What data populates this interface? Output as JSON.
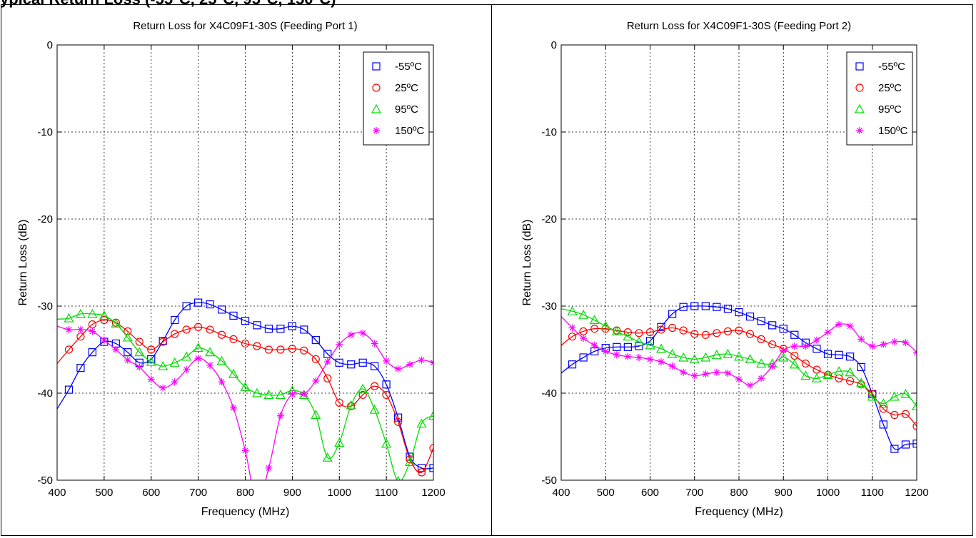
{
  "header_text": "ypical Return Loss (-55°C, 25°C, 95°C, 150°C)",
  "colors": {
    "-55C": "#0000ff",
    "25C": "#ff0000",
    "95C": "#00dd00",
    "150C": "#ff00ff",
    "grid": "#000000",
    "frame": "#000000"
  },
  "chart_data": [
    {
      "type": "line",
      "title": "Return Loss for X4C09F1-30S (Feeding Port 1)",
      "xlabel": "Frequency (MHz)",
      "ylabel": "Return Loss (dB)",
      "xlim": [
        400,
        1200
      ],
      "ylim": [
        -50,
        0
      ],
      "xticks": [
        400,
        500,
        600,
        700,
        800,
        900,
        1000,
        1100,
        1200
      ],
      "yticks": [
        0,
        -10,
        -20,
        -30,
        -40,
        -50
      ],
      "grid": true,
      "legend_position": "top-right",
      "series": [
        {
          "name": "-55ºC",
          "color_key": "-55C",
          "marker": "square",
          "x": [
            400,
            425,
            450,
            475,
            500,
            525,
            550,
            575,
            600,
            625,
            650,
            675,
            700,
            725,
            750,
            775,
            800,
            825,
            850,
            875,
            900,
            925,
            950,
            975,
            1000,
            1025,
            1050,
            1075,
            1100,
            1125,
            1150,
            1175,
            1200
          ],
          "y": [
            -41.8,
            -39.6,
            -37.1,
            -35.3,
            -34.1,
            -34.3,
            -35.3,
            -36.5,
            -36.1,
            -34.0,
            -31.6,
            -30.0,
            -29.6,
            -29.8,
            -30.4,
            -31.1,
            -31.7,
            -32.2,
            -32.6,
            -32.6,
            -32.3,
            -32.7,
            -33.9,
            -35.5,
            -36.5,
            -36.7,
            -36.5,
            -36.9,
            -39.0,
            -42.8,
            -47.3,
            -48.6,
            -48.6
          ]
        },
        {
          "name": "25ºC",
          "color_key": "25C",
          "marker": "circle",
          "x": [
            400,
            425,
            450,
            475,
            500,
            525,
            550,
            575,
            600,
            625,
            650,
            675,
            700,
            725,
            750,
            775,
            800,
            825,
            850,
            875,
            900,
            925,
            950,
            975,
            1000,
            1025,
            1050,
            1075,
            1100,
            1125,
            1150,
            1175,
            1200
          ],
          "y": [
            -36.6,
            -35.0,
            -33.5,
            -32.1,
            -31.6,
            -31.9,
            -32.9,
            -34.1,
            -35.0,
            -34.1,
            -33.2,
            -32.7,
            -32.4,
            -32.7,
            -33.3,
            -33.8,
            -34.3,
            -34.6,
            -35.0,
            -35.0,
            -34.9,
            -35.1,
            -36.1,
            -38.3,
            -41.1,
            -41.5,
            -40.2,
            -39.2,
            -40.2,
            -43.3,
            -47.6,
            -49.1,
            -46.3
          ]
        },
        {
          "name": "95ºC",
          "color_key": "95C",
          "marker": "triangle",
          "x": [
            400,
            425,
            450,
            475,
            500,
            525,
            550,
            575,
            600,
            625,
            650,
            675,
            700,
            725,
            750,
            775,
            800,
            825,
            850,
            875,
            900,
            925,
            950,
            975,
            1000,
            1025,
            1050,
            1075,
            1100,
            1125,
            1150,
            1175,
            1200
          ],
          "y": [
            -31.5,
            -31.4,
            -30.9,
            -30.9,
            -31.1,
            -32.0,
            -33.6,
            -35.3,
            -36.4,
            -36.9,
            -36.5,
            -35.8,
            -34.8,
            -35.3,
            -36.3,
            -37.8,
            -39.3,
            -40.0,
            -40.2,
            -40.2,
            -39.7,
            -40.2,
            -42.5,
            -47.4,
            -45.7,
            -41.4,
            -39.5,
            -41.9,
            -45.8,
            -50.1,
            -47.9,
            -43.5,
            -42.6
          ]
        },
        {
          "name": "150ºC",
          "color_key": "150C",
          "marker": "star",
          "x": [
            400,
            425,
            450,
            475,
            500,
            525,
            550,
            575,
            600,
            625,
            650,
            675,
            700,
            725,
            750,
            775,
            800,
            825,
            850,
            875,
            900,
            925,
            950,
            975,
            1000,
            1025,
            1050,
            1075,
            1100,
            1125,
            1150,
            1175,
            1200
          ],
          "y": [
            -32.3,
            -32.7,
            -32.7,
            -32.9,
            -33.9,
            -35.0,
            -36.2,
            -37.0,
            -38.4,
            -39.4,
            -38.7,
            -37.3,
            -36.0,
            -36.8,
            -38.7,
            -41.7,
            -46.6,
            -52.5,
            -48.6,
            -42.6,
            -40.1,
            -40.1,
            -38.6,
            -36.4,
            -34.4,
            -33.3,
            -33.1,
            -34.3,
            -36.3,
            -37.2,
            -36.7,
            -36.2,
            -36.5
          ]
        }
      ]
    },
    {
      "type": "line",
      "title": "Return Loss for X4C09F1-30S (Feeding Port 2)",
      "xlabel": "Frequency (MHz)",
      "ylabel": "Return Loss (dB)",
      "xlim": [
        400,
        1200
      ],
      "ylim": [
        -50,
        0
      ],
      "xticks": [
        400,
        500,
        600,
        700,
        800,
        900,
        1000,
        1100,
        1200
      ],
      "yticks": [
        0,
        -10,
        -20,
        -30,
        -40,
        -50
      ],
      "grid": true,
      "legend_position": "top-right",
      "series": [
        {
          "name": "-55ºC",
          "color_key": "-55C",
          "marker": "square",
          "x": [
            400,
            425,
            450,
            475,
            500,
            525,
            550,
            575,
            600,
            625,
            650,
            675,
            700,
            725,
            750,
            775,
            800,
            825,
            850,
            875,
            900,
            925,
            950,
            975,
            1000,
            1025,
            1050,
            1075,
            1100,
            1125,
            1150,
            1175,
            1200
          ],
          "y": [
            -37.7,
            -36.7,
            -35.9,
            -35.2,
            -34.8,
            -34.7,
            -34.7,
            -34.6,
            -34.0,
            -32.4,
            -30.9,
            -30.1,
            -30.0,
            -30.0,
            -30.1,
            -30.3,
            -30.7,
            -31.2,
            -31.7,
            -32.2,
            -32.6,
            -33.3,
            -34.2,
            -34.9,
            -35.5,
            -35.6,
            -35.8,
            -37.0,
            -40.1,
            -43.6,
            -46.4,
            -45.9,
            -45.8
          ]
        },
        {
          "name": "25ºC",
          "color_key": "25C",
          "marker": "circle",
          "x": [
            400,
            425,
            450,
            475,
            500,
            525,
            550,
            575,
            600,
            625,
            650,
            675,
            700,
            725,
            750,
            775,
            800,
            825,
            850,
            875,
            900,
            925,
            950,
            975,
            1000,
            1025,
            1050,
            1075,
            1100,
            1125,
            1150,
            1175,
            1200
          ],
          "y": [
            -34.5,
            -33.5,
            -32.9,
            -32.6,
            -32.6,
            -32.8,
            -33.0,
            -33.1,
            -33.0,
            -32.7,
            -32.5,
            -32.8,
            -33.2,
            -33.3,
            -33.1,
            -32.9,
            -32.8,
            -33.2,
            -33.8,
            -34.4,
            -34.9,
            -35.7,
            -36.6,
            -37.3,
            -37.9,
            -38.3,
            -38.6,
            -39.0,
            -40.1,
            -41.8,
            -42.5,
            -42.4,
            -43.8
          ]
        },
        {
          "name": "95ºC",
          "color_key": "95C",
          "marker": "triangle",
          "x": [
            400,
            425,
            450,
            475,
            500,
            525,
            550,
            575,
            600,
            625,
            650,
            675,
            700,
            725,
            750,
            775,
            800,
            825,
            850,
            875,
            900,
            925,
            950,
            975,
            1000,
            1025,
            1050,
            1075,
            1100,
            1125,
            1150,
            1175,
            1200
          ],
          "y": [
            -30.3,
            -30.6,
            -31.0,
            -31.6,
            -32.3,
            -32.9,
            -33.5,
            -34.1,
            -34.5,
            -34.9,
            -35.5,
            -35.9,
            -36.1,
            -35.9,
            -35.6,
            -35.5,
            -35.8,
            -36.1,
            -36.6,
            -36.6,
            -35.9,
            -36.7,
            -38.0,
            -38.3,
            -37.9,
            -37.5,
            -37.6,
            -38.8,
            -40.4,
            -41.2,
            -40.4,
            -40.1,
            -41.5
          ]
        },
        {
          "name": "150ºC",
          "color_key": "150C",
          "marker": "star",
          "x": [
            400,
            425,
            450,
            475,
            500,
            525,
            550,
            575,
            600,
            625,
            650,
            675,
            700,
            725,
            750,
            775,
            800,
            825,
            850,
            875,
            900,
            925,
            950,
            975,
            1000,
            1025,
            1050,
            1075,
            1100,
            1125,
            1150,
            1175,
            1200
          ],
          "y": [
            -31.2,
            -32.5,
            -33.7,
            -34.5,
            -35.2,
            -35.6,
            -35.8,
            -35.9,
            -36.1,
            -36.4,
            -36.9,
            -37.6,
            -38.0,
            -37.8,
            -37.6,
            -37.7,
            -38.4,
            -39.1,
            -38.3,
            -36.9,
            -35.1,
            -34.6,
            -34.6,
            -33.9,
            -33.0,
            -32.1,
            -32.3,
            -33.8,
            -34.6,
            -34.4,
            -34.1,
            -34.2,
            -35.3
          ]
        }
      ]
    }
  ]
}
